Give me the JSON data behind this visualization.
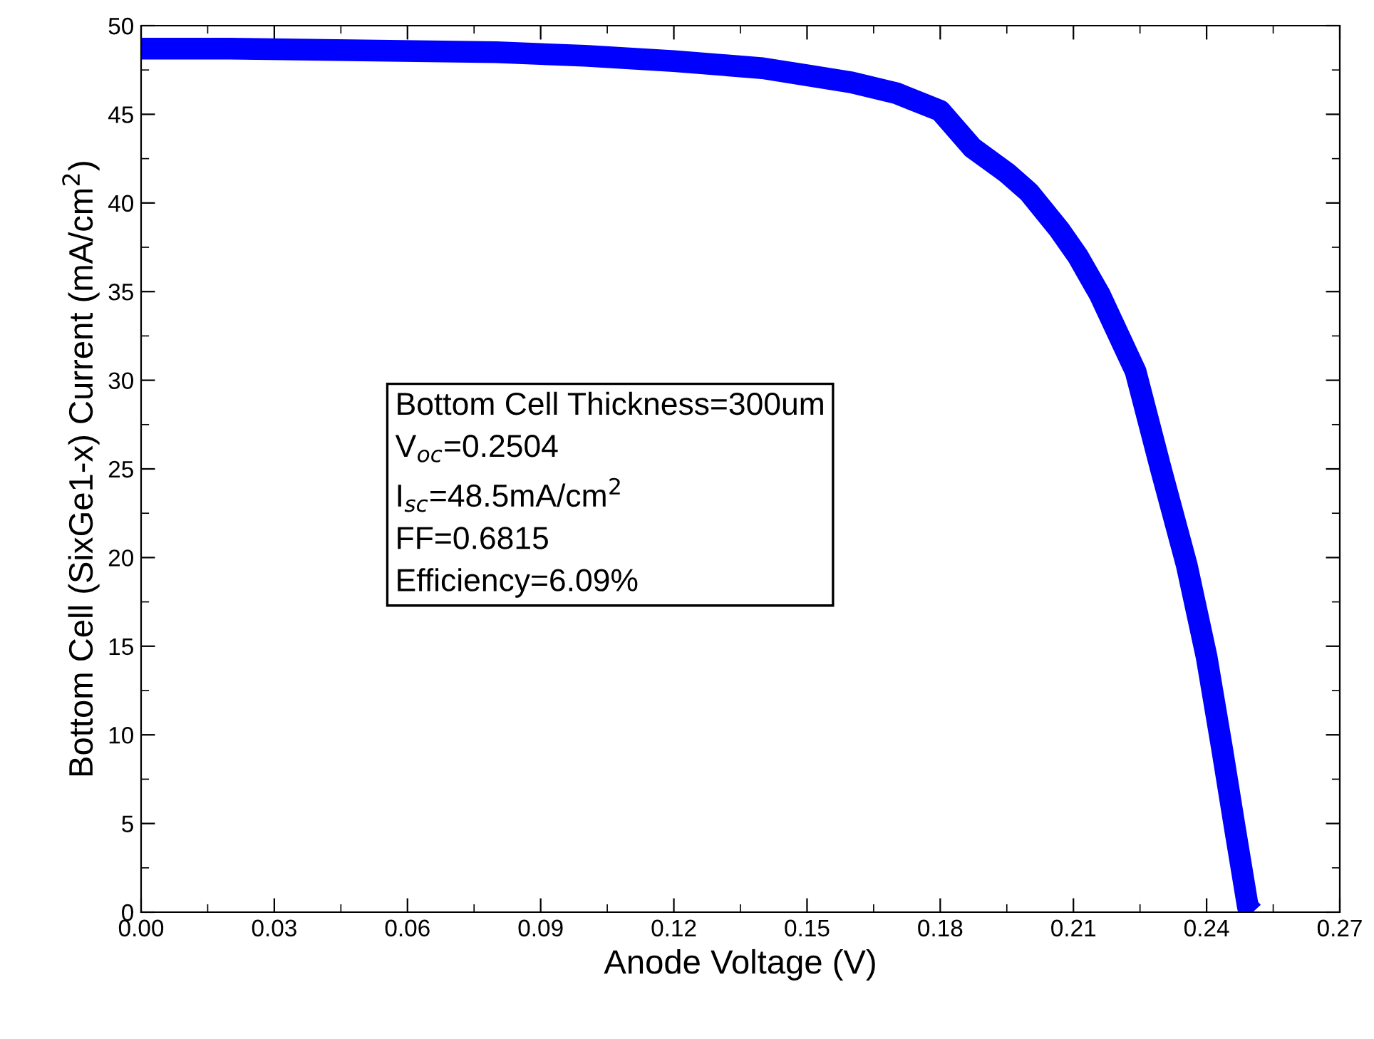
{
  "chart_data": {
    "type": "line",
    "xlabel": "Anode Voltage (V)",
    "ylabel": "Bottom Cell (SixGe1-x) Current (mA/cm$^{2}$)",
    "annotations": [
      "Bottom Cell Thickness=300um",
      "V$_{oc}$=0.2504",
      "I$_{sc}$=48.5mA/cm$^{2}$",
      "FF=0.6815",
      "Efficiency=6.09%"
    ],
    "series": [
      {
        "color": "#0000ff",
        "x": [
          0,
          0.02,
          0.05,
          0.08,
          0.1,
          0.12,
          0.14,
          0.15,
          0.16,
          0.17,
          0.18,
          0.1873,
          0.195,
          0.2,
          0.2068,
          0.211,
          0.216,
          0.224,
          0.2297,
          0.2355,
          0.24,
          0.2435,
          0.2464,
          0.2493,
          0.2504
        ],
        "values": [
          48.7,
          48.7,
          48.6,
          48.5,
          48.3,
          48.0,
          47.6,
          47.2,
          46.8,
          46.2,
          45.2,
          43.1,
          41.7,
          40.6,
          38.5,
          37.0,
          34.8,
          30.5,
          25.0,
          19.6,
          14.4,
          9.2,
          4.7,
          0.3,
          0
        ]
      }
    ],
    "xlim": [
      0,
      0.27
    ],
    "xticks": [
      {
        "value": 0,
        "label": "0.00"
      },
      0.03,
      0.06,
      0.09,
      0.12,
      0.15,
      0.18,
      0.21,
      0.24,
      0.27
    ],
    "ylim": [
      0,
      50
    ],
    "yticks": [
      0,
      5,
      10,
      15,
      20,
      25,
      30,
      35,
      40,
      45,
      50
    ],
    "grid": false,
    "marker": "none",
    "line_style": "solid"
  }
}
